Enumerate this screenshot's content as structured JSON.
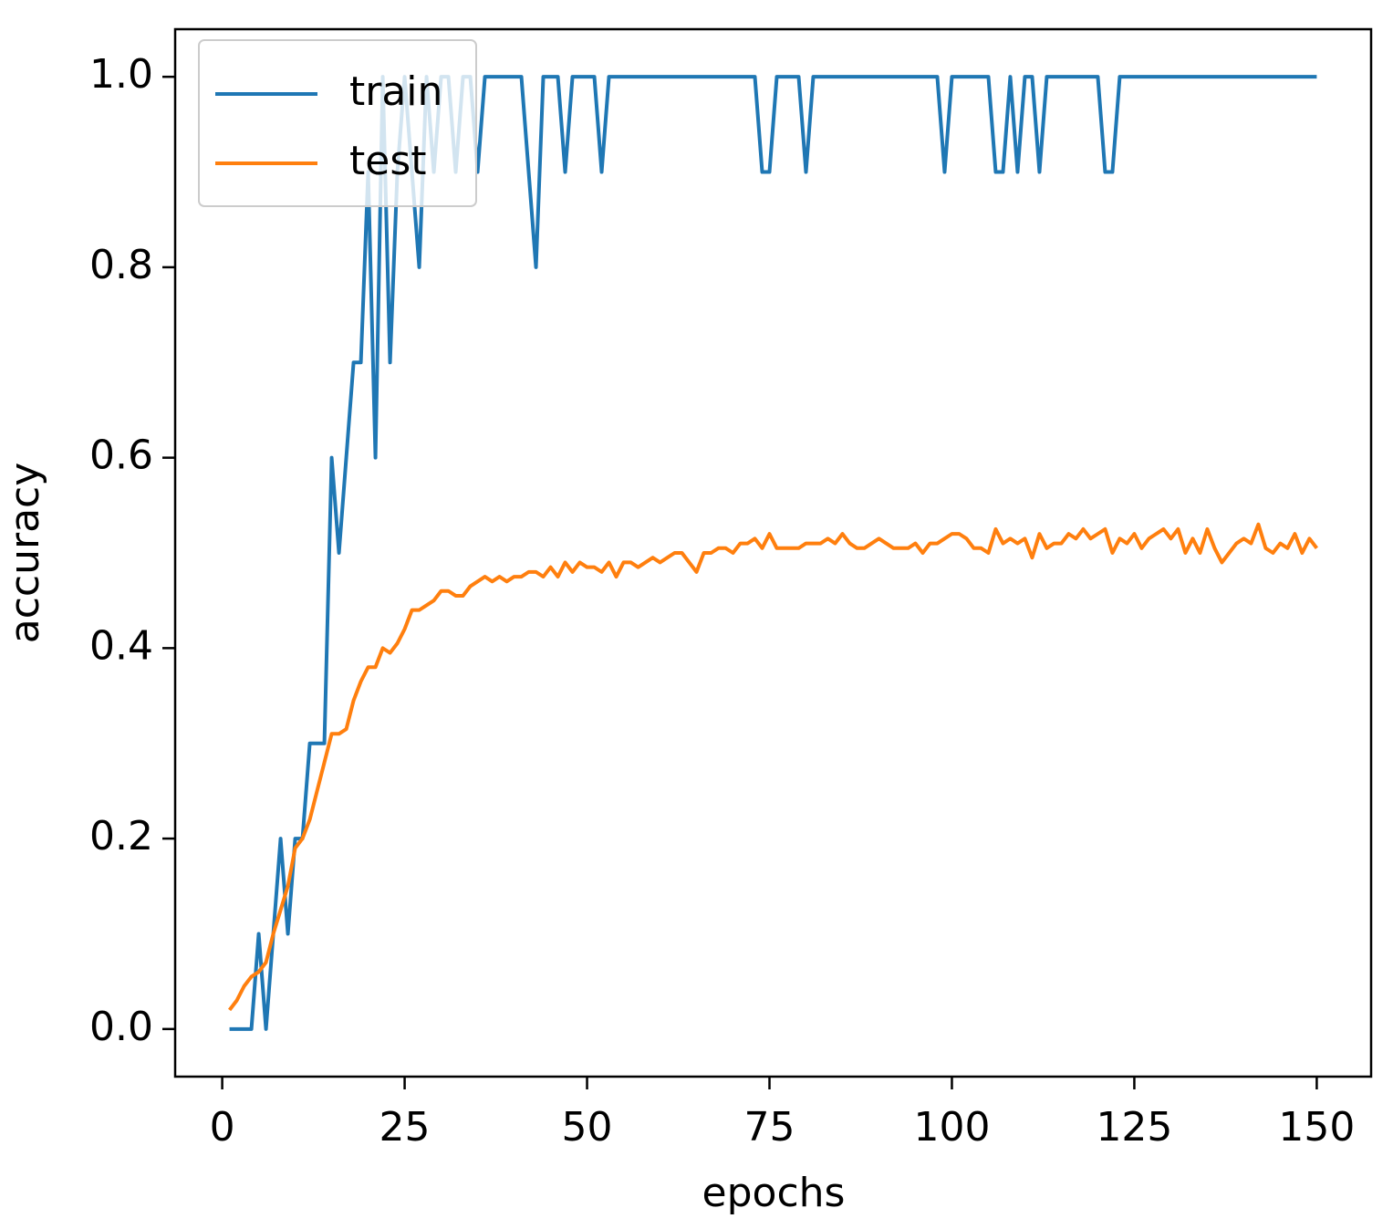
{
  "chart_data": {
    "type": "line",
    "xlabel": "epochs",
    "ylabel": "accuracy",
    "x": [
      1,
      2,
      3,
      4,
      5,
      6,
      7,
      8,
      9,
      10,
      11,
      12,
      13,
      14,
      15,
      16,
      17,
      18,
      19,
      20,
      21,
      22,
      23,
      24,
      25,
      26,
      27,
      28,
      29,
      30,
      31,
      32,
      33,
      34,
      35,
      36,
      37,
      38,
      39,
      40,
      41,
      42,
      43,
      44,
      45,
      46,
      47,
      48,
      49,
      50,
      51,
      52,
      53,
      54,
      55,
      56,
      57,
      58,
      59,
      60,
      61,
      62,
      63,
      64,
      65,
      66,
      67,
      68,
      69,
      70,
      71,
      72,
      73,
      74,
      75,
      76,
      77,
      78,
      79,
      80,
      81,
      82,
      83,
      84,
      85,
      86,
      87,
      88,
      89,
      90,
      91,
      92,
      93,
      94,
      95,
      96,
      97,
      98,
      99,
      100,
      101,
      102,
      103,
      104,
      105,
      106,
      107,
      108,
      109,
      110,
      111,
      112,
      113,
      114,
      115,
      116,
      117,
      118,
      119,
      120,
      121,
      122,
      123,
      124,
      125,
      126,
      127,
      128,
      129,
      130,
      131,
      132,
      133,
      134,
      135,
      136,
      137,
      138,
      139,
      140,
      141,
      142,
      143,
      144,
      145,
      146,
      147,
      148,
      149,
      150
    ],
    "series": [
      {
        "name": "train",
        "color": "#1f77b4",
        "values": [
          0,
          0,
          0,
          0,
          0.1,
          0,
          0.1,
          0.2,
          0.1,
          0.2,
          0.2,
          0.3,
          0.3,
          0.3,
          0.6,
          0.5,
          0.6,
          0.7,
          0.7,
          0.9,
          0.6,
          1.0,
          0.7,
          0.9,
          1.0,
          0.9,
          0.8,
          1.0,
          0.9,
          1.0,
          1.0,
          0.9,
          1.0,
          1.0,
          0.9,
          1.0,
          1.0,
          1.0,
          1.0,
          1.0,
          1.0,
          0.9,
          0.8,
          1.0,
          1.0,
          1.0,
          0.9,
          1.0,
          1.0,
          1.0,
          1.0,
          0.9,
          1.0,
          1.0,
          1.0,
          1.0,
          1.0,
          1.0,
          1.0,
          1.0,
          1.0,
          1.0,
          1.0,
          1.0,
          1.0,
          1.0,
          1.0,
          1.0,
          1.0,
          1.0,
          1.0,
          1.0,
          1.0,
          0.9,
          0.9,
          1.0,
          1.0,
          1.0,
          1.0,
          0.9,
          1.0,
          1.0,
          1.0,
          1.0,
          1.0,
          1.0,
          1.0,
          1.0,
          1.0,
          1.0,
          1.0,
          1.0,
          1.0,
          1.0,
          1.0,
          1.0,
          1.0,
          1.0,
          0.9,
          1.0,
          1.0,
          1.0,
          1.0,
          1.0,
          1.0,
          0.9,
          0.9,
          1.0,
          0.9,
          1.0,
          1.0,
          0.9,
          1.0,
          1.0,
          1.0,
          1.0,
          1.0,
          1.0,
          1.0,
          1.0,
          0.9,
          0.9,
          1.0,
          1.0,
          1.0,
          1.0,
          1.0,
          1.0,
          1.0,
          1.0,
          1.0,
          1.0,
          1.0,
          1.0,
          1.0,
          1.0,
          1.0,
          1.0,
          1.0,
          1.0,
          1.0,
          1.0,
          1.0,
          1.0,
          1.0,
          1.0,
          1.0,
          1.0,
          1.0,
          1.0
        ]
      },
      {
        "name": "test",
        "color": "#ff7f0e",
        "values": [
          0.02,
          0.03,
          0.045,
          0.055,
          0.06,
          0.07,
          0.1,
          0.125,
          0.15,
          0.19,
          0.2,
          0.22,
          0.25,
          0.28,
          0.31,
          0.31,
          0.315,
          0.345,
          0.365,
          0.38,
          0.38,
          0.4,
          0.395,
          0.405,
          0.42,
          0.44,
          0.44,
          0.445,
          0.45,
          0.46,
          0.46,
          0.455,
          0.455,
          0.465,
          0.47,
          0.475,
          0.47,
          0.475,
          0.47,
          0.475,
          0.475,
          0.48,
          0.48,
          0.475,
          0.485,
          0.475,
          0.49,
          0.48,
          0.49,
          0.485,
          0.485,
          0.48,
          0.49,
          0.475,
          0.49,
          0.49,
          0.485,
          0.49,
          0.495,
          0.49,
          0.495,
          0.5,
          0.5,
          0.49,
          0.48,
          0.5,
          0.5,
          0.505,
          0.505,
          0.5,
          0.51,
          0.51,
          0.515,
          0.505,
          0.52,
          0.505,
          0.505,
          0.505,
          0.505,
          0.51,
          0.51,
          0.51,
          0.515,
          0.51,
          0.52,
          0.51,
          0.505,
          0.505,
          0.51,
          0.515,
          0.51,
          0.505,
          0.505,
          0.505,
          0.51,
          0.5,
          0.51,
          0.51,
          0.515,
          0.52,
          0.52,
          0.515,
          0.505,
          0.505,
          0.5,
          0.525,
          0.51,
          0.515,
          0.51,
          0.515,
          0.495,
          0.52,
          0.505,
          0.51,
          0.51,
          0.52,
          0.515,
          0.525,
          0.515,
          0.52,
          0.525,
          0.5,
          0.515,
          0.51,
          0.52,
          0.505,
          0.515,
          0.52,
          0.525,
          0.515,
          0.525,
          0.5,
          0.515,
          0.5,
          0.525,
          0.505,
          0.49,
          0.5,
          0.51,
          0.515,
          0.51,
          0.53,
          0.505,
          0.5,
          0.51,
          0.505,
          0.52,
          0.5,
          0.515,
          0.505
        ]
      }
    ],
    "xlim": [
      -6.45,
      157.45
    ],
    "ylim": [
      -0.05,
      1.05
    ],
    "xticks": [
      0,
      25,
      50,
      75,
      100,
      125,
      150
    ],
    "yticks": [
      {
        "value": 0,
        "label": "0.0"
      },
      0.2,
      0.4,
      0.6,
      0.8,
      {
        "value": 1,
        "label": "1.0"
      }
    ],
    "grid": false,
    "legend": "upper left"
  }
}
